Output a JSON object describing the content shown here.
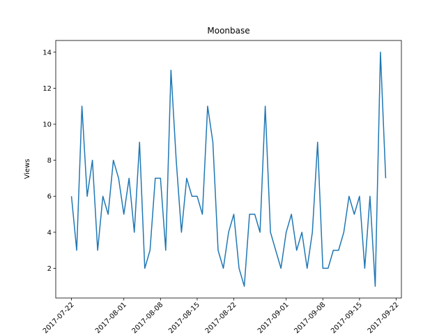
{
  "chart_data": {
    "type": "line",
    "title": "Moonbase",
    "y_label": "Views",
    "x": [
      "2017-07-22",
      "2017-07-23",
      "2017-07-24",
      "2017-07-25",
      "2017-07-26",
      "2017-07-27",
      "2017-07-28",
      "2017-07-29",
      "2017-07-30",
      "2017-07-31",
      "2017-08-01",
      "2017-08-02",
      "2017-08-03",
      "2017-08-04",
      "2017-08-05",
      "2017-08-06",
      "2017-08-07",
      "2017-08-08",
      "2017-08-09",
      "2017-08-10",
      "2017-08-11",
      "2017-08-12",
      "2017-08-13",
      "2017-08-14",
      "2017-08-15",
      "2017-08-16",
      "2017-08-17",
      "2017-08-18",
      "2017-08-19",
      "2017-08-20",
      "2017-08-21",
      "2017-08-22",
      "2017-08-23",
      "2017-08-24",
      "2017-08-25",
      "2017-08-26",
      "2017-08-27",
      "2017-08-28",
      "2017-08-29",
      "2017-08-30",
      "2017-08-31",
      "2017-09-01",
      "2017-09-02",
      "2017-09-03",
      "2017-09-04",
      "2017-09-05",
      "2017-09-06",
      "2017-09-07",
      "2017-09-08",
      "2017-09-09",
      "2017-09-10",
      "2017-09-11",
      "2017-09-12",
      "2017-09-13",
      "2017-09-14",
      "2017-09-15",
      "2017-09-16",
      "2017-09-17",
      "2017-09-18",
      "2017-09-19",
      "2017-09-20"
    ],
    "series": [
      {
        "name": "Views",
        "color": "#1f77b4",
        "values": [
          6,
          3,
          11,
          6,
          8,
          3,
          6,
          5,
          8,
          7,
          5,
          7,
          4,
          9,
          2,
          3,
          7,
          7,
          3,
          13,
          8,
          4,
          7,
          6,
          6,
          5,
          11,
          9,
          3,
          2,
          4,
          5,
          2,
          1,
          5,
          5,
          4,
          11,
          4,
          3,
          2,
          4,
          5,
          3,
          4,
          2,
          4,
          9,
          2,
          2,
          3,
          3,
          4,
          6,
          5,
          6,
          2,
          6,
          1,
          14,
          7
        ]
      }
    ],
    "xlim": [
      "2017-07-19",
      "2017-09-23"
    ],
    "xticks": [
      "2017-07-22",
      "2017-08-01",
      "2017-08-08",
      "2017-08-15",
      "2017-08-22",
      "2017-09-01",
      "2017-09-08",
      "2017-09-15",
      "2017-09-22"
    ],
    "ylim": [
      0.35,
      14.65
    ],
    "yticks": [
      2,
      4,
      6,
      8,
      10,
      12,
      14
    ]
  }
}
